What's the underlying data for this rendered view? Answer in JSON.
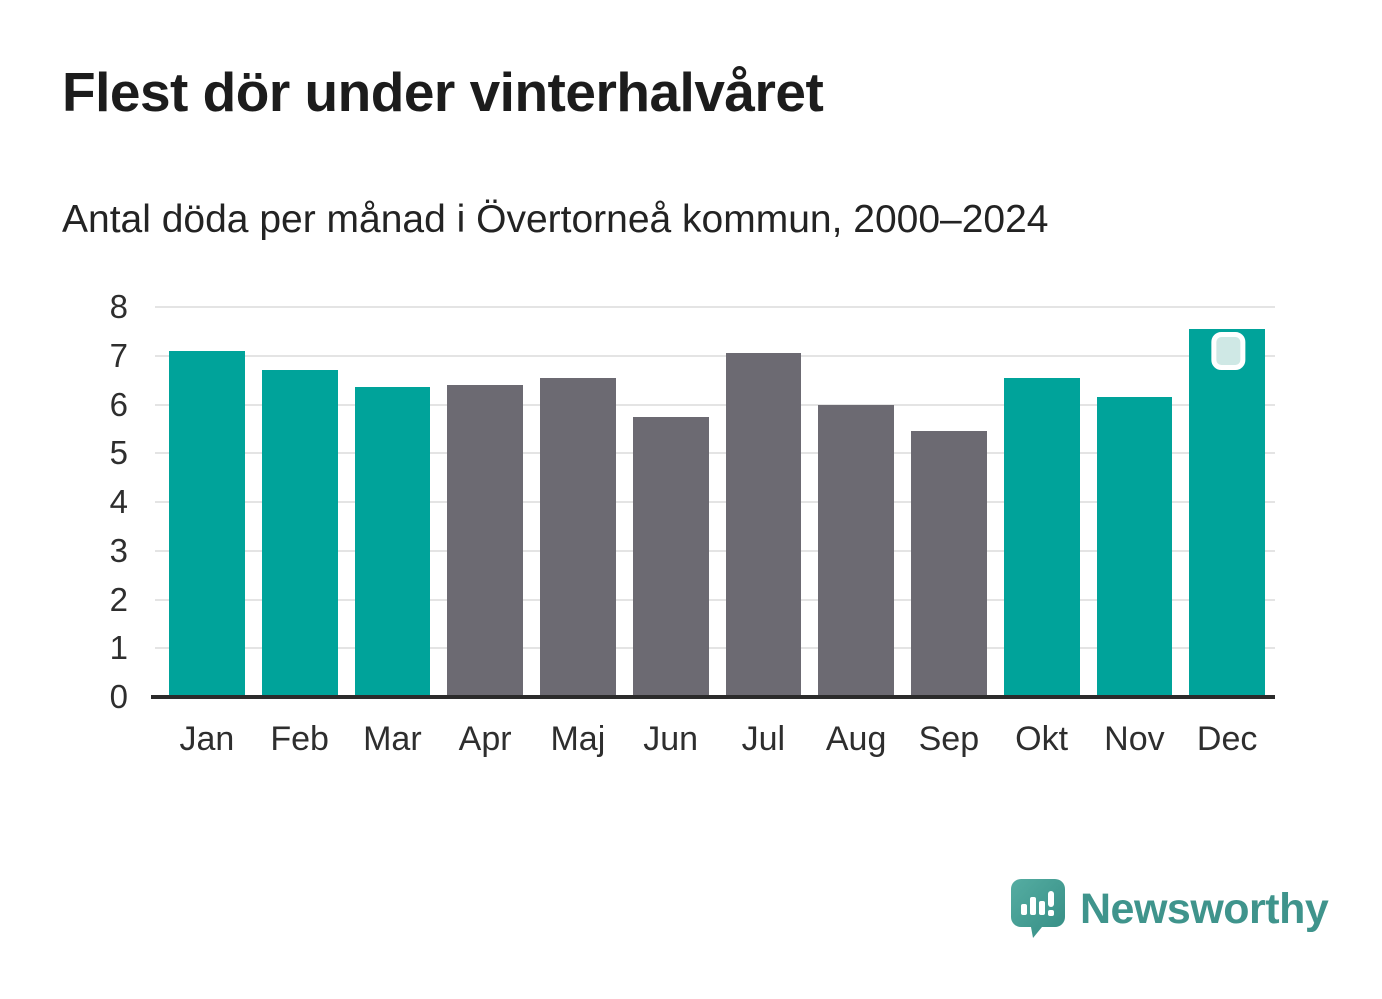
{
  "title": "Flest dör under vinterhalvåret",
  "subtitle": "Antal döda per månad i Övertorneå kommun, 2000–2024",
  "chart_data": {
    "type": "bar",
    "title": "Flest dör under vinterhalvåret",
    "subtitle": "Antal döda per månad i Övertorneå kommun, 2000–2024",
    "categories": [
      "Jan",
      "Feb",
      "Mar",
      "Apr",
      "Maj",
      "Jun",
      "Jul",
      "Aug",
      "Sep",
      "Okt",
      "Nov",
      "Dec"
    ],
    "values": [
      7.1,
      6.7,
      6.35,
      6.4,
      6.55,
      5.75,
      7.05,
      6.0,
      5.45,
      6.55,
      6.15,
      7.55
    ],
    "bar_colors": [
      "#00a39a",
      "#00a39a",
      "#00a39a",
      "#6c6a72",
      "#6c6a72",
      "#6c6a72",
      "#6c6a72",
      "#6c6a72",
      "#6c6a72",
      "#00a39a",
      "#00a39a",
      "#00a39a"
    ],
    "xlabel": "",
    "ylabel": "",
    "ylim": [
      0,
      8
    ],
    "yticks": [
      0,
      1,
      2,
      3,
      4,
      5,
      6,
      7,
      8
    ],
    "grid": "horizontal",
    "legend": "none",
    "highlight": {
      "category": "Dec",
      "marker": "rounded-square-badge",
      "badge_fill": "#cfe8e5",
      "badge_border": "#ffffff"
    }
  },
  "colors": {
    "winter_bar": "#00a39a",
    "summer_bar": "#6c6a72",
    "gridline": "#e4e4e4",
    "axis": "#2b2b2b",
    "title_text": "#1c1c1c",
    "brand": "#3f948c"
  },
  "footer": {
    "brand_label": "Newsworthy",
    "logo_icon": "newsworthy-speech-bubble-chart-icon"
  }
}
